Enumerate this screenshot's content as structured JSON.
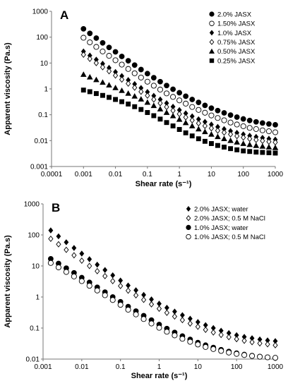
{
  "chart_data": [
    {
      "panel": "A",
      "type": "scatter",
      "xlabel": "Shear rate (s⁻¹)",
      "ylabel": "Apparent viscosity (Pa.s)",
      "xscale": "log",
      "yscale": "log",
      "xlim": [
        0.0001,
        1000
      ],
      "ylim": [
        0.001,
        1000
      ],
      "x_ticks": [
        "0.0001",
        "0.001",
        "0.01",
        "0.1",
        "1",
        "10",
        "100",
        "1000"
      ],
      "y_ticks": [
        "0.001",
        "0.01",
        "0.1",
        "1",
        "10",
        "100",
        "1000"
      ],
      "grid": false,
      "legend_position": "top-right",
      "x": [
        0.001,
        0.00158,
        0.00251,
        0.00398,
        0.00631,
        0.01,
        0.0158,
        0.0251,
        0.0398,
        0.0631,
        0.1,
        0.158,
        0.251,
        0.398,
        0.631,
        1,
        1.58,
        2.51,
        3.98,
        6.31,
        10,
        15.8,
        25.1,
        39.8,
        63.1,
        100,
        158,
        251,
        398,
        631,
        1000
      ],
      "series": [
        {
          "name": "2.0% JASX",
          "marker": "circle-filled",
          "values": [
            210,
            140,
            92,
            60,
            40,
            27,
            18,
            12.2,
            8.3,
            5.6,
            3.9,
            2.7,
            1.9,
            1.35,
            0.97,
            0.71,
            0.52,
            0.39,
            0.3,
            0.23,
            0.18,
            0.145,
            0.118,
            0.097,
            0.081,
            0.069,
            0.06,
            0.053,
            0.048,
            0.044,
            0.041
          ]
        },
        {
          "name": "1.50% JASX",
          "marker": "circle-open",
          "values": [
            95,
            63,
            42,
            28,
            19,
            12.8,
            8.7,
            5.9,
            4.0,
            2.75,
            1.9,
            1.33,
            0.94,
            0.67,
            0.49,
            0.36,
            0.27,
            0.2,
            0.154,
            0.12,
            0.094,
            0.075,
            0.061,
            0.05,
            0.042,
            0.036,
            0.031,
            0.028,
            0.025,
            0.023,
            0.021
          ]
        },
        {
          "name": "1.0% JASX",
          "marker": "diamond-filled",
          "values": [
            28,
            19.5,
            13.5,
            9.4,
            6.5,
            4.5,
            3.15,
            2.2,
            1.54,
            1.08,
            0.76,
            0.54,
            0.39,
            0.28,
            0.205,
            0.152,
            0.114,
            0.087,
            0.067,
            0.053,
            0.042,
            0.034,
            0.028,
            0.0235,
            0.02,
            0.0175,
            0.0155,
            0.014,
            0.0128,
            0.0118,
            0.011
          ]
        },
        {
          "name": "0.75% JASX",
          "marker": "diamond-open",
          "values": [
            21,
            14.5,
            10,
            6.9,
            4.8,
            3.3,
            2.3,
            1.6,
            1.12,
            0.78,
            0.55,
            0.39,
            0.28,
            0.2,
            0.145,
            0.107,
            0.08,
            0.061,
            0.047,
            0.037,
            0.03,
            0.0245,
            0.0205,
            0.0175,
            0.015,
            0.0132,
            0.0118,
            0.0107,
            0.0098,
            0.0091,
            0.0086
          ]
        },
        {
          "name": "0.50% JASX",
          "marker": "triangle-filled",
          "values": [
            3.6,
            2.85,
            2.25,
            1.78,
            1.4,
            1.1,
            0.86,
            0.67,
            0.52,
            0.4,
            0.3,
            0.225,
            0.166,
            0.122,
            0.09,
            0.066,
            0.049,
            0.037,
            0.028,
            0.022,
            0.0175,
            0.0142,
            0.0118,
            0.01,
            0.0087,
            0.0077,
            0.007,
            0.0064,
            0.006,
            0.0056,
            0.0053
          ]
        },
        {
          "name": "0.25% JASX",
          "marker": "square-filled",
          "values": [
            0.9,
            0.78,
            0.66,
            0.56,
            0.47,
            0.39,
            0.32,
            0.26,
            0.205,
            0.16,
            0.122,
            0.092,
            0.068,
            0.05,
            0.037,
            0.027,
            0.02,
            0.0152,
            0.0118,
            0.0094,
            0.0077,
            0.0065,
            0.0056,
            0.0049,
            0.0044,
            0.004,
            0.0038,
            0.0036,
            0.0035,
            0.0034,
            0.0033
          ]
        }
      ]
    },
    {
      "panel": "B",
      "type": "scatter",
      "xlabel": "Shear rate (s⁻¹)",
      "ylabel": "Apparent viscosity (Pa.s)",
      "xscale": "log",
      "yscale": "log",
      "xlim": [
        0.001,
        1000
      ],
      "ylim": [
        0.01,
        1000
      ],
      "x_ticks": [
        "0.001",
        "0.01",
        "0.1",
        "1",
        "10",
        "100",
        "1000"
      ],
      "y_ticks": [
        "0.01",
        "0.1",
        "1",
        "10",
        "100",
        "1000"
      ],
      "grid": false,
      "legend_position": "top-right",
      "x": [
        0.00158,
        0.00251,
        0.00398,
        0.00631,
        0.01,
        0.0158,
        0.0251,
        0.0398,
        0.0631,
        0.1,
        0.158,
        0.251,
        0.398,
        0.631,
        1,
        1.58,
        2.51,
        3.98,
        6.31,
        10,
        15.8,
        25.1,
        39.8,
        63.1,
        100,
        158,
        251,
        398,
        631,
        1000
      ],
      "series": [
        {
          "name": "2.0% JASX; water",
          "marker": "diamond-filled",
          "values": [
            140,
            90,
            58,
            38,
            25,
            16.5,
            11,
            7.4,
            5.0,
            3.4,
            2.35,
            1.65,
            1.17,
            0.84,
            0.61,
            0.45,
            0.34,
            0.26,
            0.2,
            0.156,
            0.124,
            0.1,
            0.082,
            0.069,
            0.059,
            0.052,
            0.047,
            0.043,
            0.04,
            0.038
          ]
        },
        {
          "name": "2.0% JASX; 0.5 M NaCl",
          "marker": "diamond-open",
          "values": [
            75,
            50,
            33,
            22,
            14.8,
            10,
            6.8,
            4.7,
            3.25,
            2.27,
            1.6,
            1.13,
            0.81,
            0.58,
            0.42,
            0.31,
            0.235,
            0.18,
            0.14,
            0.11,
            0.088,
            0.072,
            0.06,
            0.051,
            0.044,
            0.039,
            0.035,
            0.032,
            0.03,
            0.028
          ]
        },
        {
          "name": "1.0% JASX; water",
          "marker": "circle-filled",
          "values": [
            17,
            12,
            8.5,
            6.0,
            4.2,
            2.95,
            2.05,
            1.43,
            1.0,
            0.7,
            0.49,
            0.35,
            0.25,
            0.18,
            0.13,
            0.096,
            0.072,
            0.055,
            0.043,
            0.034,
            0.028,
            0.0235,
            0.02,
            0.0175,
            0.0155,
            0.014,
            0.0129,
            0.012,
            0.0114,
            0.0109
          ]
        },
        {
          "name": "1.0% JASX; 0.5 M NaCl",
          "marker": "circle-open",
          "values": [
            12.5,
            9.0,
            6.4,
            4.6,
            3.25,
            2.3,
            1.62,
            1.14,
            0.8,
            0.56,
            0.39,
            0.275,
            0.195,
            0.14,
            0.102,
            0.076,
            0.058,
            0.045,
            0.036,
            0.0295,
            0.0245,
            0.021,
            0.0183,
            0.0162,
            0.0147,
            0.0135,
            0.0126,
            0.0119,
            0.0114,
            0.011
          ]
        }
      ]
    }
  ]
}
